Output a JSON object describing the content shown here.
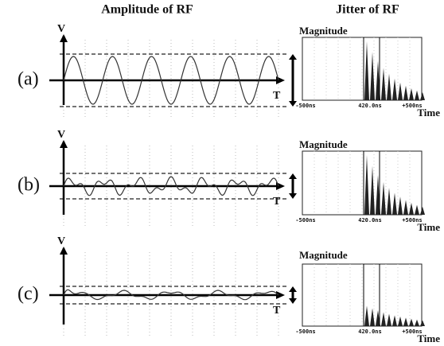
{
  "header": {
    "left_title": "Amplitude of RF",
    "right_title": "Jitter of RF"
  },
  "panels": [
    {
      "label": "(a)",
      "y_axis": "V",
      "x_axis": "T",
      "jitter": {
        "y_label": "Magnitude",
        "x_label": "Time",
        "ticks": [
          "-500ns",
          "420.0ns",
          "+500ns"
        ]
      }
    },
    {
      "label": "(b)",
      "y_axis": "V",
      "x_axis": "T",
      "jitter": {
        "y_label": "Magnitude",
        "x_label": "Time",
        "ticks": [
          "-500ns",
          "420.0ns",
          "+500ns"
        ]
      }
    },
    {
      "label": "(c)",
      "y_axis": "V",
      "x_axis": "T",
      "jitter": {
        "y_label": "Magnitude",
        "x_label": "Time",
        "ticks": [
          "-500ns",
          "420.0ns",
          "+500ns"
        ]
      }
    }
  ]
}
